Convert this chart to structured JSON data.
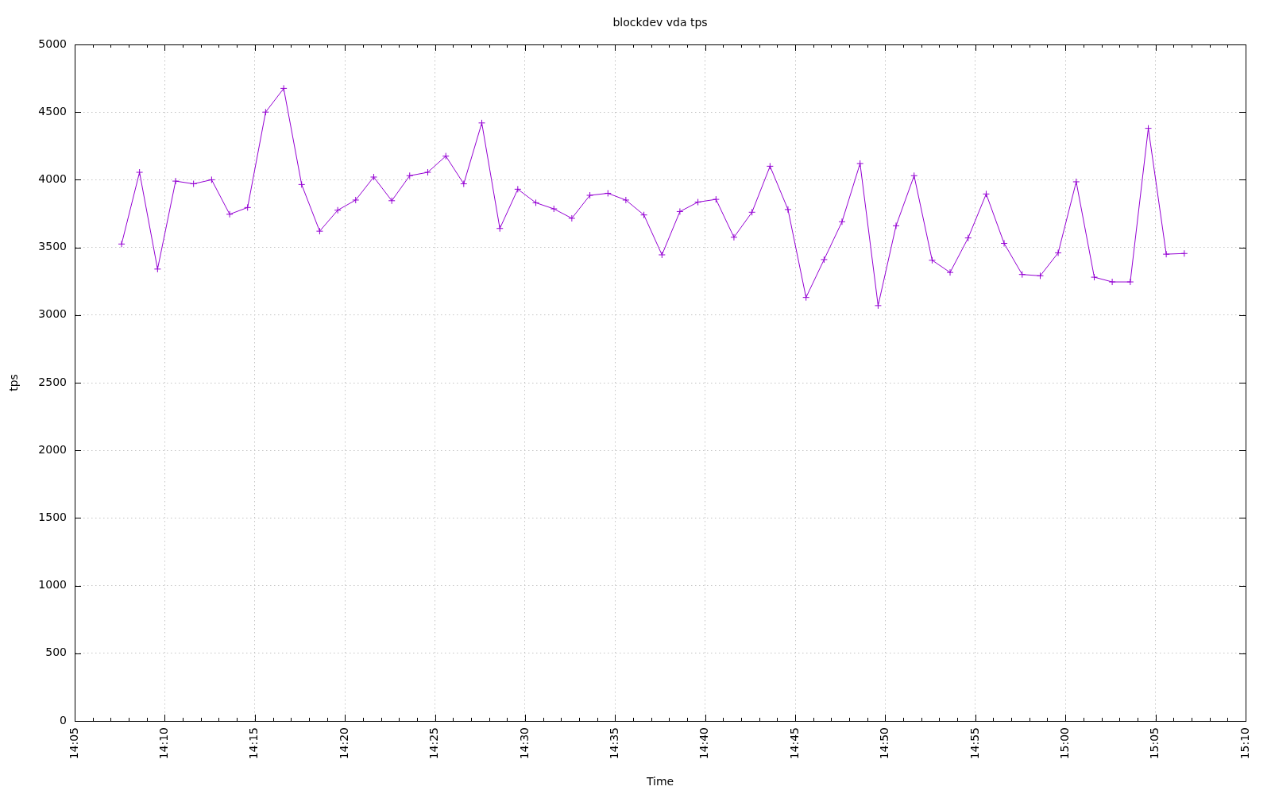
{
  "chart_data": {
    "type": "line",
    "title": "blockdev vda tps",
    "xlabel": "Time",
    "ylabel": "tps",
    "x": [
      14.1267,
      14.1433,
      14.16,
      14.1767,
      14.1933,
      14.21,
      14.2267,
      14.2433,
      14.26,
      14.2767,
      14.2933,
      14.31,
      14.3267,
      14.3433,
      14.36,
      14.3767,
      14.3933,
      14.41,
      14.4267,
      14.4433,
      14.46,
      14.4767,
      14.4933,
      14.51,
      14.5267,
      14.5433,
      14.56,
      14.5767,
      14.5933,
      14.61,
      14.6267,
      14.6433,
      14.66,
      14.6767,
      14.6933,
      14.71,
      14.7267,
      14.7433,
      14.76,
      14.7767,
      14.7933,
      14.81,
      14.8267,
      14.8433,
      14.86,
      14.8767,
      14.8933,
      14.91,
      14.9267,
      14.9433,
      14.96,
      14.9767,
      14.9933,
      15.01,
      15.0267,
      15.0433,
      15.06,
      15.0767,
      15.0933,
      15.11
    ],
    "series": [
      {
        "color": "#9400d3",
        "values": [
          3525,
          4055,
          3340,
          3990,
          3970,
          4000,
          3745,
          3795,
          4500,
          4675,
          3965,
          3620,
          3775,
          3850,
          4020,
          3845,
          4030,
          4055,
          4175,
          3970,
          4420,
          3640,
          3930,
          3830,
          3785,
          3715,
          3885,
          3900,
          3850,
          3740,
          3445,
          3765,
          3835,
          3855,
          3575,
          3760,
          4100,
          3780,
          3130,
          3410,
          3690,
          4120,
          3070,
          3660,
          4030,
          3405,
          3315,
          3570,
          3895,
          3530,
          3300,
          3290,
          3460,
          3985,
          3280,
          3245,
          3245,
          4380,
          3450,
          3455
        ]
      }
    ],
    "xlim": [
      14.0833,
      15.1667
    ],
    "xticks": [
      {
        "value": 14.0833,
        "label": "14:05"
      },
      {
        "value": 14.1,
        "label": null
      },
      {
        "value": 14.1167,
        "label": null
      },
      {
        "value": 14.1333,
        "label": null
      },
      {
        "value": 14.15,
        "label": null
      },
      {
        "value": 14.1667,
        "label": "14:10"
      },
      {
        "value": 14.1833,
        "label": null
      },
      {
        "value": 14.2,
        "label": null
      },
      {
        "value": 14.2167,
        "label": null
      },
      {
        "value": 14.2333,
        "label": null
      },
      {
        "value": 14.25,
        "label": "14:15"
      },
      {
        "value": 14.2667,
        "label": null
      },
      {
        "value": 14.2833,
        "label": null
      },
      {
        "value": 14.3,
        "label": null
      },
      {
        "value": 14.3167,
        "label": null
      },
      {
        "value": 14.3333,
        "label": "14:20"
      },
      {
        "value": 14.35,
        "label": null
      },
      {
        "value": 14.3667,
        "label": null
      },
      {
        "value": 14.3833,
        "label": null
      },
      {
        "value": 14.4,
        "label": null
      },
      {
        "value": 14.4167,
        "label": "14:25"
      },
      {
        "value": 14.4333,
        "label": null
      },
      {
        "value": 14.45,
        "label": null
      },
      {
        "value": 14.4667,
        "label": null
      },
      {
        "value": 14.4833,
        "label": null
      },
      {
        "value": 14.5,
        "label": "14:30"
      },
      {
        "value": 14.5167,
        "label": null
      },
      {
        "value": 14.5333,
        "label": null
      },
      {
        "value": 14.55,
        "label": null
      },
      {
        "value": 14.5667,
        "label": null
      },
      {
        "value": 14.5833,
        "label": "14:35"
      },
      {
        "value": 14.6,
        "label": null
      },
      {
        "value": 14.6167,
        "label": null
      },
      {
        "value": 14.6333,
        "label": null
      },
      {
        "value": 14.65,
        "label": null
      },
      {
        "value": 14.6667,
        "label": "14:40"
      },
      {
        "value": 14.6833,
        "label": null
      },
      {
        "value": 14.7,
        "label": null
      },
      {
        "value": 14.7167,
        "label": null
      },
      {
        "value": 14.7333,
        "label": null
      },
      {
        "value": 14.75,
        "label": "14:45"
      },
      {
        "value": 14.7667,
        "label": null
      },
      {
        "value": 14.7833,
        "label": null
      },
      {
        "value": 14.8,
        "label": null
      },
      {
        "value": 14.8167,
        "label": null
      },
      {
        "value": 14.8333,
        "label": "14:50"
      },
      {
        "value": 14.85,
        "label": null
      },
      {
        "value": 14.8667,
        "label": null
      },
      {
        "value": 14.8833,
        "label": null
      },
      {
        "value": 14.9,
        "label": null
      },
      {
        "value": 14.9167,
        "label": "14:55"
      },
      {
        "value": 14.9333,
        "label": null
      },
      {
        "value": 14.95,
        "label": null
      },
      {
        "value": 14.9667,
        "label": null
      },
      {
        "value": 14.9833,
        "label": null
      },
      {
        "value": 15,
        "label": "15:00"
      },
      {
        "value": 15.0167,
        "label": null
      },
      {
        "value": 15.0333,
        "label": null
      },
      {
        "value": 15.05,
        "label": null
      },
      {
        "value": 15.0667,
        "label": null
      },
      {
        "value": 15.0833,
        "label": "15:05"
      },
      {
        "value": 15.1,
        "label": null
      },
      {
        "value": 15.1167,
        "label": null
      },
      {
        "value": 15.1333,
        "label": null
      },
      {
        "value": 15.15,
        "label": null
      },
      {
        "value": 15.1667,
        "label": "15:10"
      }
    ],
    "ylim": [
      0,
      5000
    ],
    "yticks": [
      0,
      500,
      1000,
      1500,
      2000,
      2500,
      3000,
      3500,
      4000,
      4500,
      5000
    ],
    "grid": true,
    "marker": "cross",
    "line_style": "solid"
  }
}
